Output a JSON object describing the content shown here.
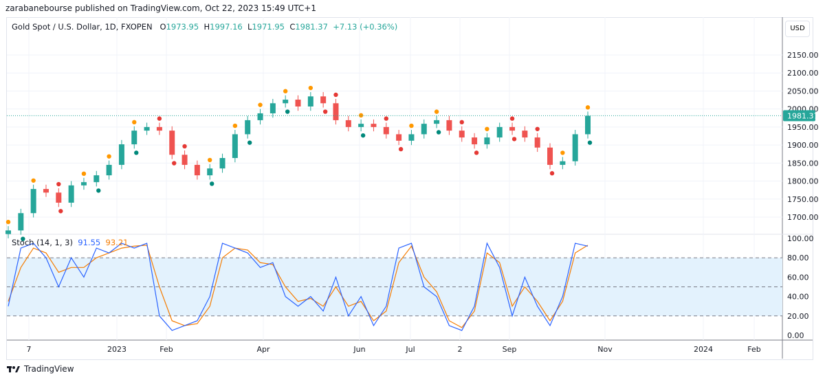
{
  "publisher_line": "zarabanebourse published on TradingView.com, Oct 22, 2023 15:49 UTC+1",
  "footer_brand": "TradingView",
  "colors": {
    "up": "#26a69a",
    "down": "#ef5350",
    "stoch_k": "#2962ff",
    "stoch_d": "#f57c00",
    "band": "#e3f2fd",
    "dot_orange": "#ff9800",
    "dot_red": "#e53935",
    "dot_green": "#00897b"
  },
  "chart_data": [
    {
      "type": "candlestick",
      "title": "Gold Spot / U.S. Dollar, 1D, FXOPEN",
      "ohlc": {
        "o_label": "O",
        "o": "1973.95",
        "h_label": "H",
        "h": "1997.16",
        "l_label": "L",
        "l": "1971.95",
        "c_label": "C",
        "c": "1981.37",
        "change": "+7.13 (+0.36%)"
      },
      "currency": "USD",
      "last_price": "1981.37",
      "ylim": [
        1660,
        2190
      ],
      "yticks": [
        "2150.00",
        "2100.00",
        "2050.00",
        "2000.00",
        "1950.00",
        "1900.00",
        "1850.00",
        "1800.00",
        "1750.00",
        "1700.00"
      ],
      "xticks": [
        "7",
        "2023",
        "Feb",
        "Apr",
        "Jun",
        "Jul",
        "2",
        "Sep",
        "Nov",
        "2024",
        "Feb"
      ],
      "closes": [
        1663,
        1711,
        1778,
        1768,
        1740,
        1788,
        1797,
        1816,
        1845,
        1902,
        1940,
        1950,
        1940,
        1873,
        1845,
        1816,
        1835,
        1864,
        1930,
        1969,
        1988,
        2016,
        2026,
        2007,
        2035,
        2016,
        1969,
        1950,
        1959,
        1950,
        1930,
        1912,
        1930,
        1959,
        1969,
        1940,
        1921,
        1902,
        1921,
        1950,
        1940,
        1921,
        1893,
        1845,
        1855,
        1930,
        1981
      ]
    },
    {
      "type": "line",
      "title": "Stoch (14, 1, 3)",
      "k_value": "91.55",
      "d_value": "93.21",
      "ylim": [
        0,
        100
      ],
      "yticks": [
        "100.00",
        "80.00",
        "60.00",
        "40.00",
        "20.00",
        "0.00"
      ],
      "band": [
        20,
        80
      ],
      "series": [
        {
          "name": "K",
          "values": [
            30,
            90,
            95,
            80,
            50,
            80,
            60,
            90,
            85,
            95,
            90,
            95,
            20,
            5,
            10,
            15,
            40,
            95,
            90,
            85,
            70,
            75,
            40,
            30,
            40,
            25,
            60,
            20,
            40,
            10,
            30,
            90,
            95,
            50,
            40,
            10,
            5,
            30,
            95,
            70,
            20,
            60,
            30,
            10,
            40,
            95,
            92
          ]
        },
        {
          "name": "D",
          "values": [
            35,
            70,
            90,
            85,
            65,
            70,
            70,
            80,
            85,
            90,
            92,
            93,
            50,
            15,
            10,
            12,
            30,
            80,
            90,
            88,
            75,
            73,
            50,
            35,
            38,
            30,
            50,
            30,
            35,
            15,
            25,
            75,
            92,
            60,
            45,
            15,
            8,
            25,
            85,
            75,
            30,
            50,
            35,
            15,
            35,
            85,
            93
          ]
        }
      ]
    }
  ]
}
